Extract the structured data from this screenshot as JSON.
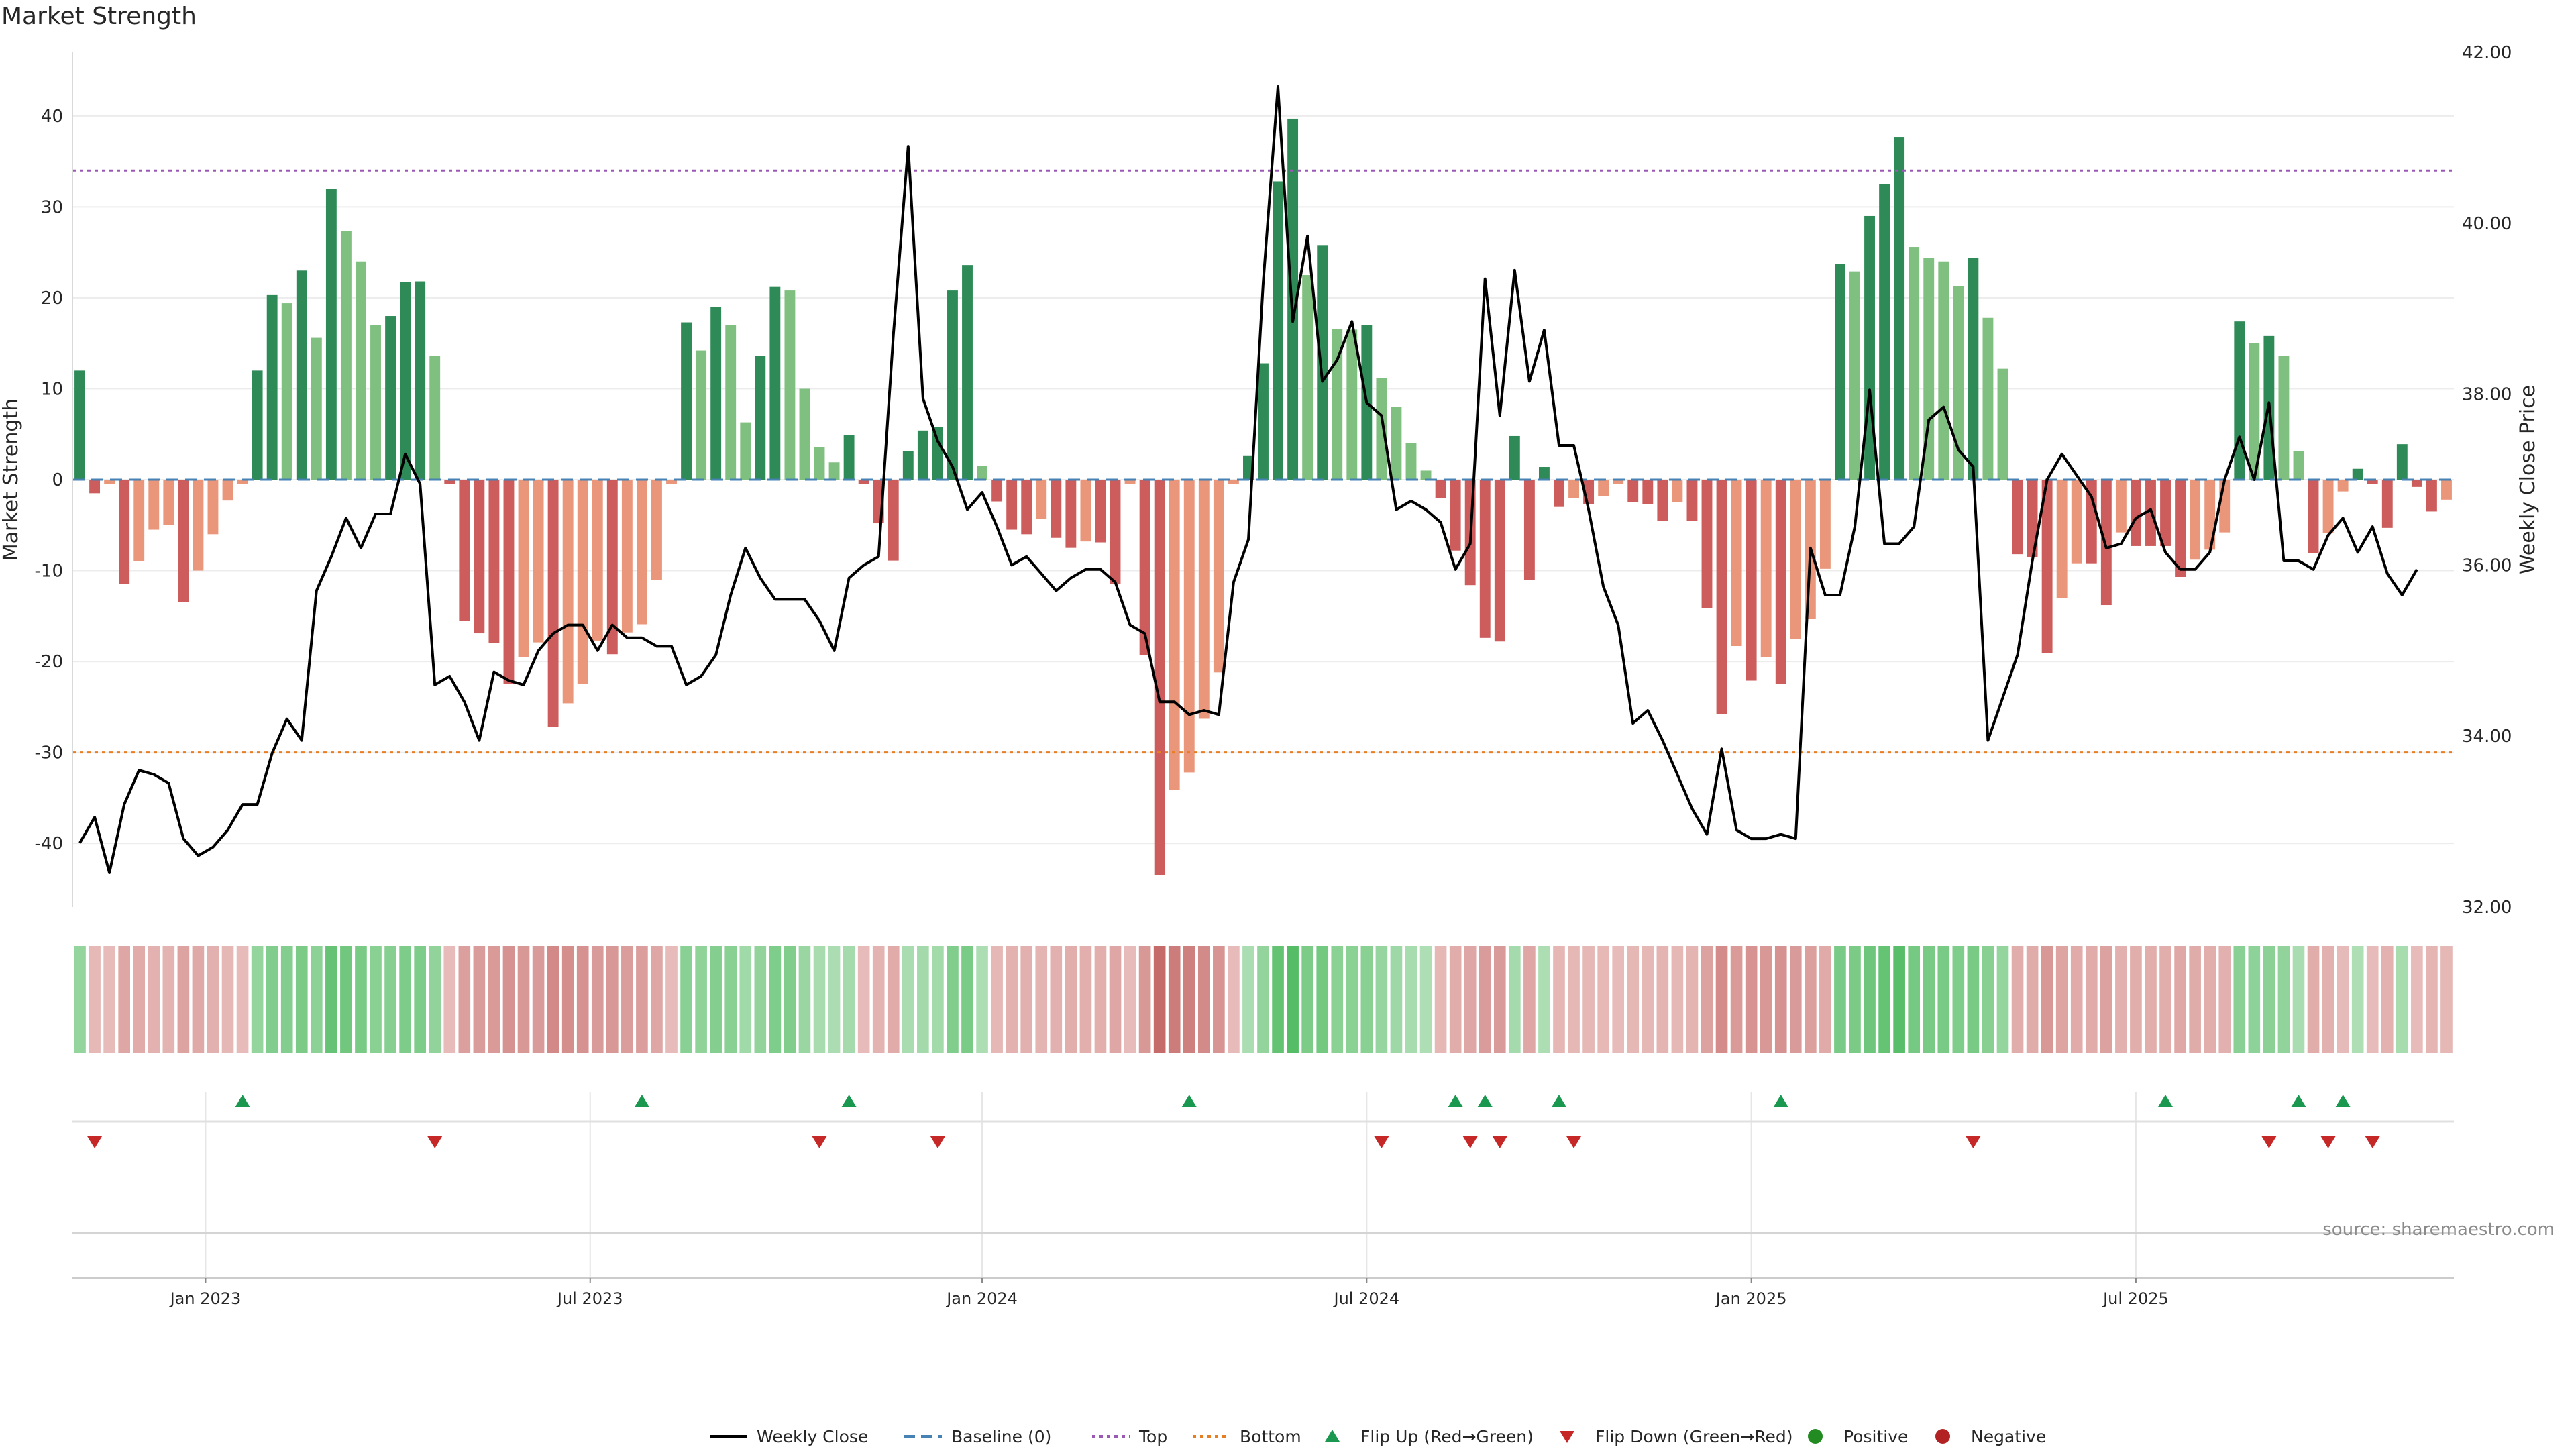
{
  "title": "Market Strength",
  "source": "source: sharemaestro.com",
  "chart_data": {
    "type": "bar",
    "ylabel": "Market Strength",
    "y2label": "Weekly Close Price",
    "ylim": [
      -47,
      47
    ],
    "y2lim": [
      32.0,
      42.0
    ],
    "yticks": [
      40,
      30,
      20,
      10,
      0,
      -10,
      -20,
      -30,
      -40
    ],
    "y2ticks": [
      "42.00",
      "40.00",
      "38.00",
      "36.00",
      "34.00",
      "32.00"
    ],
    "top_level": 34,
    "bottom_level": -30,
    "xticks": [
      {
        "label": "Jan 2023",
        "week": 9
      },
      {
        "label": "Jul 2023",
        "week": 35
      },
      {
        "label": "Jan 2024",
        "week": 61.5
      },
      {
        "label": "Jul 2024",
        "week": 87.5
      },
      {
        "label": "Jan 2025",
        "week": 113.5
      },
      {
        "label": "Jul 2025",
        "week": 139.5
      }
    ],
    "bars": [
      12,
      -1.5,
      -0.5,
      -11.5,
      -9,
      -5.5,
      -5,
      -13.5,
      -10,
      -6,
      -2.3,
      -0.5,
      12,
      20.3,
      19.4,
      23,
      15.6,
      32,
      27.3,
      24,
      17,
      18,
      21.7,
      21.8,
      13.6,
      -0.5,
      -15.5,
      -16.9,
      -18,
      -22.5,
      -19.5,
      -17.9,
      -27.2,
      -24.6,
      -22.5,
      -17.7,
      -19.2,
      -16.8,
      -15.9,
      -11,
      -0.5,
      17.3,
      14.2,
      19,
      17,
      6.3,
      13.6,
      21.2,
      20.8,
      10,
      3.6,
      1.9,
      4.9,
      -0.5,
      -4.8,
      -8.9,
      3.1,
      5.4,
      5.8,
      20.8,
      23.6,
      1.5,
      -2.4,
      -5.5,
      -6,
      -4.3,
      -6.4,
      -7.5,
      -6.8,
      -6.9,
      -11.5,
      -0.5,
      -19.3,
      -43.5,
      -34.1,
      -32.2,
      -26.3,
      -21.2,
      -0.5,
      2.6,
      12.8,
      32.8,
      39.7,
      22.5,
      25.8,
      16.6,
      16.5,
      17,
      11.2,
      8,
      4,
      1,
      -2,
      -7.8,
      -11.6,
      -17.4,
      -17.8,
      4.8,
      -11,
      1.4,
      -3,
      -2,
      -2.7,
      -1.8,
      -0.5,
      -2.5,
      -2.7,
      -4.5,
      -2.5,
      -4.5,
      -14.1,
      -25.8,
      -18.3,
      -22.1,
      -19.5,
      -22.5,
      -17.5,
      -15.3,
      -9.8,
      23.7,
      22.9,
      29,
      32.5,
      37.7,
      25.6,
      24.4,
      24,
      21.3,
      24.4,
      17.8,
      12.2,
      -8.2,
      -8.5,
      -19.1,
      -13,
      -9.2,
      -9.2,
      -13.8,
      -5.8,
      -7.3,
      -7.3,
      -7.3,
      -10.7,
      -8.8,
      -7.7,
      -5.8,
      17.4,
      15,
      15.8,
      13.6,
      3.1,
      -8.1,
      -5.9,
      -1.3,
      1.2,
      -0.5,
      -5.3,
      3.9,
      -0.8,
      -3.5,
      -2.2
    ],
    "price": [
      32.75,
      33.05,
      32.4,
      33.2,
      33.6,
      33.55,
      33.45,
      32.8,
      32.6,
      32.7,
      32.9,
      33.2,
      33.2,
      33.8,
      34.2,
      33.95,
      35.7,
      36.1,
      36.55,
      36.2,
      36.6,
      36.6,
      37.3,
      36.95,
      34.6,
      34.7,
      34.4,
      33.95,
      34.75,
      34.65,
      34.6,
      35.0,
      35.2,
      35.3,
      35.3,
      35.0,
      35.3,
      35.15,
      35.15,
      35.05,
      35.05,
      34.6,
      34.7,
      34.95,
      35.65,
      36.2,
      35.85,
      35.6,
      35.6,
      35.6,
      35.35,
      35.0,
      35.85,
      36.0,
      36.1,
      38.7,
      40.9,
      37.95,
      37.45,
      37.15,
      36.65,
      36.85,
      36.45,
      36.0,
      36.1,
      35.9,
      35.7,
      35.85,
      35.95,
      35.95,
      35.8,
      35.3,
      35.2,
      34.4,
      34.4,
      34.25,
      34.3,
      34.25,
      35.8,
      36.3,
      39.3,
      41.6,
      38.85,
      39.85,
      38.15,
      38.4,
      38.85,
      37.9,
      37.75,
      36.65,
      36.75,
      36.65,
      36.5,
      35.95,
      36.25,
      39.35,
      37.75,
      39.45,
      38.15,
      38.75,
      37.4,
      37.4,
      36.65,
      35.75,
      35.3,
      34.15,
      34.3,
      33.95,
      33.55,
      33.15,
      32.85,
      33.85,
      32.9,
      32.8,
      32.8,
      32.85,
      32.8,
      36.2,
      35.65,
      35.65,
      36.45,
      38.05,
      36.25,
      36.25,
      36.45,
      37.7,
      37.85,
      37.35,
      37.15,
      33.95,
      34.45,
      34.95,
      36.05,
      37.0,
      37.3,
      37.05,
      36.8,
      36.2,
      36.25,
      36.55,
      36.65,
      36.15,
      35.95,
      35.95,
      36.15,
      37.0,
      37.5,
      37.0,
      37.9,
      36.05,
      36.05,
      35.95,
      36.35,
      36.55,
      36.15,
      36.45,
      35.9,
      35.65,
      35.95
    ]
  },
  "flip_up_weeks": [
    11,
    38,
    52,
    75,
    93,
    95,
    100,
    115,
    141,
    150,
    153
  ],
  "flip_down_weeks": [
    1,
    24,
    50,
    58,
    88,
    94,
    96,
    101,
    128,
    148,
    152,
    155
  ],
  "legend": {
    "weekly_close": "Weekly Close",
    "baseline": "Baseline (0)",
    "top": "Top",
    "bottom": "Bottom",
    "flip_up": "Flip Up (Red→Green)",
    "flip_down": "Flip Down (Green→Red)",
    "positive": "Positive",
    "negative": "Negative"
  },
  "colors": {
    "strong_up": "#2e8b57",
    "mild_up": "#7fbf7f",
    "strong_down": "#cd5c5c",
    "mild_down": "#e9967a",
    "price": "#000000",
    "baseline": "#4682b4",
    "top": "#9b59b6",
    "bottom": "#e67e22",
    "flip_up": "#1a9850",
    "flip_down": "#c62828",
    "positive": "#228b22",
    "negative": "#b22222"
  }
}
